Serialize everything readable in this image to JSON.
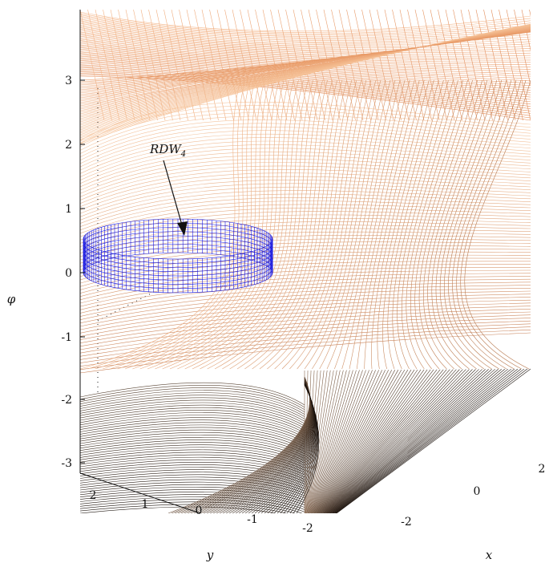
{
  "figure": {
    "annotation_main": "RDW",
    "annotation_sub": "4",
    "phi_label": "φ",
    "x_label": "x",
    "y_label": "y",
    "phi_ticks": [
      "3",
      "2",
      "1",
      "0",
      "-1",
      "-2",
      "-3"
    ],
    "y_ticks": [
      "2",
      "1",
      "0",
      "-1",
      "-2"
    ],
    "x_ticks": [
      "-2",
      "0",
      "2"
    ],
    "colors": {
      "surface_light": "#f2ad7b",
      "surface_mid": "#c98a5e",
      "surface_dark": "#2a1c12",
      "torus": "#1e1ee6",
      "axis": "#111111"
    }
  }
}
